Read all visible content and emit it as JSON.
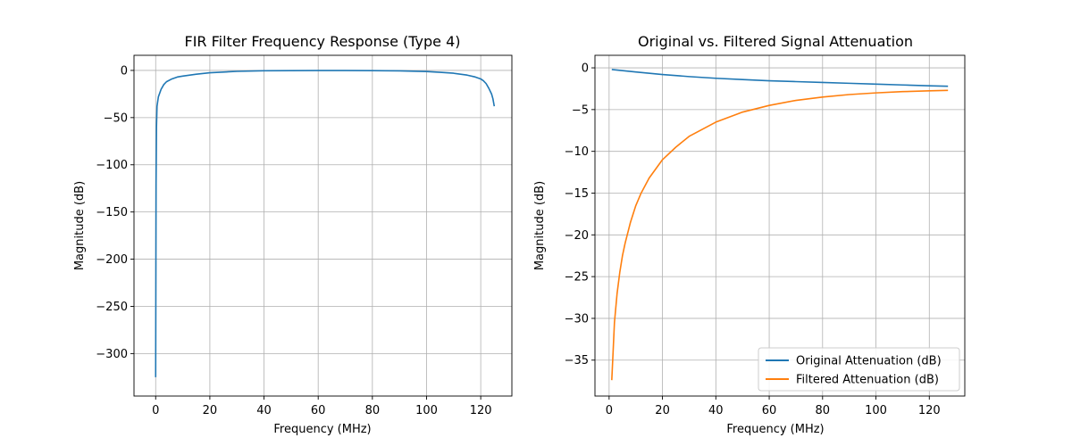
{
  "chart_data": [
    {
      "type": "line",
      "title": "FIR Filter Frequency Response (Type 4)",
      "xlabel": "Frequency (MHz)",
      "ylabel": "Magnitude (dB)",
      "xlim": [
        -8,
        131.5
      ],
      "ylim": [
        -345,
        16
      ],
      "xticks": [
        0,
        20,
        40,
        60,
        80,
        100,
        120
      ],
      "yticks": [
        0,
        -50,
        -100,
        -150,
        -200,
        -250,
        -300
      ],
      "grid": true,
      "series": [
        {
          "color": "#1f77b4",
          "x": [
            0,
            0.15,
            0.3,
            0.5,
            1,
            2,
            3,
            4,
            6,
            8,
            10,
            15,
            20,
            30,
            40,
            50,
            60,
            70,
            80,
            90,
            100,
            105,
            110,
            115,
            118,
            120,
            121,
            122,
            123,
            124,
            124.5,
            125
          ],
          "y": [
            -325,
            -120,
            -60,
            -38,
            -28,
            -20,
            -15,
            -12,
            -9,
            -7,
            -6,
            -4,
            -2.5,
            -1,
            -0.4,
            -0.2,
            -0.1,
            -0.1,
            -0.2,
            -0.5,
            -1.2,
            -2,
            -3,
            -5,
            -7,
            -9,
            -11,
            -14,
            -19,
            -25,
            -30,
            -38
          ]
        }
      ]
    },
    {
      "type": "line",
      "title": "Original vs. Filtered Signal Attenuation",
      "xlabel": "Frequency (MHz)",
      "ylabel": "Magnitude (dB)",
      "xlim": [
        -5.3,
        133.3
      ],
      "ylim": [
        -39.3,
        1.5
      ],
      "xticks": [
        0,
        20,
        40,
        60,
        80,
        100,
        120
      ],
      "yticks": [
        0,
        -5,
        -10,
        -15,
        -20,
        -25,
        -30,
        -35
      ],
      "grid": true,
      "legend": "lower-right",
      "series": [
        {
          "name": "Original Attenuation (dB)",
          "color": "#1f77b4",
          "x": [
            1,
            10,
            20,
            30,
            40,
            50,
            60,
            70,
            80,
            90,
            100,
            110,
            120,
            127
          ],
          "y": [
            -0.2,
            -0.5,
            -0.8,
            -1.05,
            -1.25,
            -1.4,
            -1.55,
            -1.65,
            -1.75,
            -1.85,
            -1.95,
            -2.05,
            -2.15,
            -2.2
          ]
        },
        {
          "name": "Filtered Attenuation (dB)",
          "color": "#ff7f0e",
          "x": [
            1,
            1.5,
            2,
            3,
            4,
            5,
            6,
            8,
            10,
            12,
            15,
            20,
            25,
            30,
            40,
            50,
            60,
            70,
            80,
            90,
            100,
            110,
            120,
            127
          ],
          "y": [
            -37.4,
            -34,
            -30.5,
            -27,
            -24.5,
            -22.5,
            -21,
            -18.5,
            -16.5,
            -15,
            -13.2,
            -11,
            -9.5,
            -8.2,
            -6.5,
            -5.3,
            -4.5,
            -3.9,
            -3.5,
            -3.2,
            -3.0,
            -2.85,
            -2.75,
            -2.7
          ]
        }
      ]
    }
  ]
}
